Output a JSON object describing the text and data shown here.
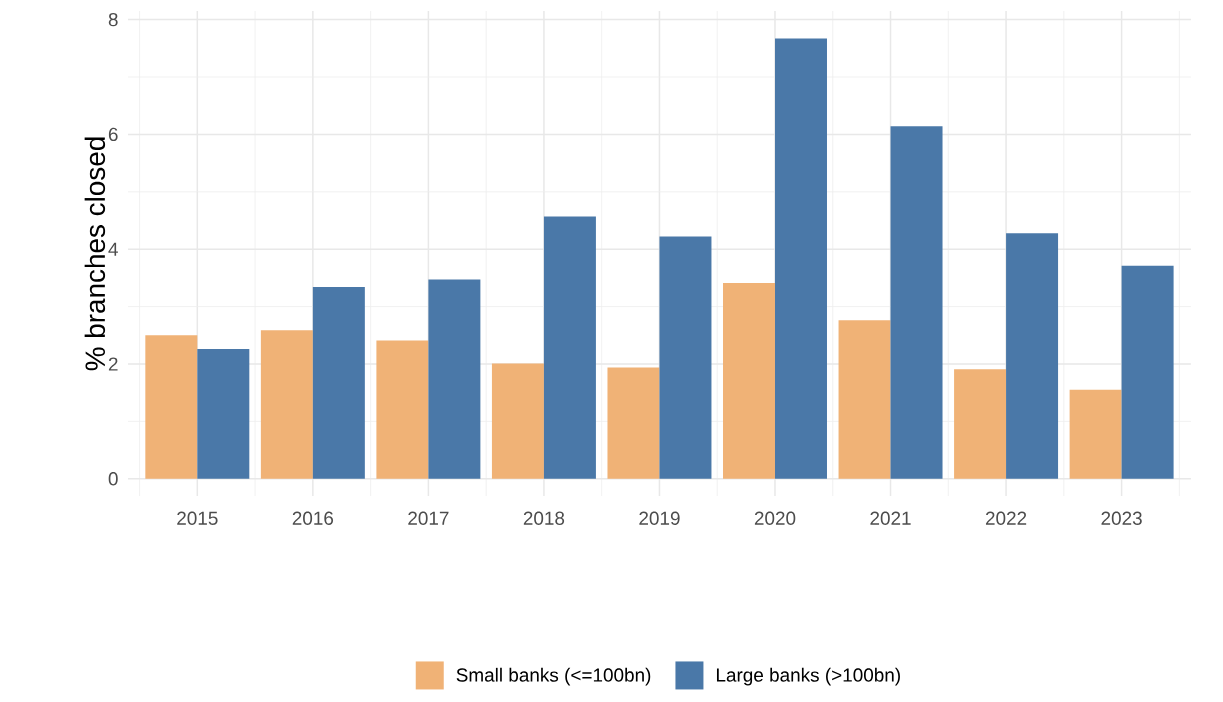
{
  "chart_data": {
    "type": "bar",
    "ylabel": "% branches closed",
    "categories": [
      "2015",
      "2016",
      "2017",
      "2018",
      "2019",
      "2020",
      "2021",
      "2022",
      "2023"
    ],
    "series": [
      {
        "name": "Small banks (<=100bn)",
        "color": "#f0b276",
        "values": [
          2.5,
          2.59,
          2.41,
          2.01,
          1.94,
          3.41,
          2.76,
          1.91,
          1.55
        ]
      },
      {
        "name": "Large banks (>100bn)",
        "color": "#4a78a8",
        "values": [
          2.26,
          3.34,
          3.47,
          4.57,
          4.22,
          7.67,
          6.14,
          4.28,
          3.71
        ]
      }
    ],
    "ylim": [
      -0.3,
      8.15
    ],
    "yticks": [
      0,
      2,
      4,
      6,
      8
    ],
    "grid": true,
    "legend": "bottom"
  }
}
